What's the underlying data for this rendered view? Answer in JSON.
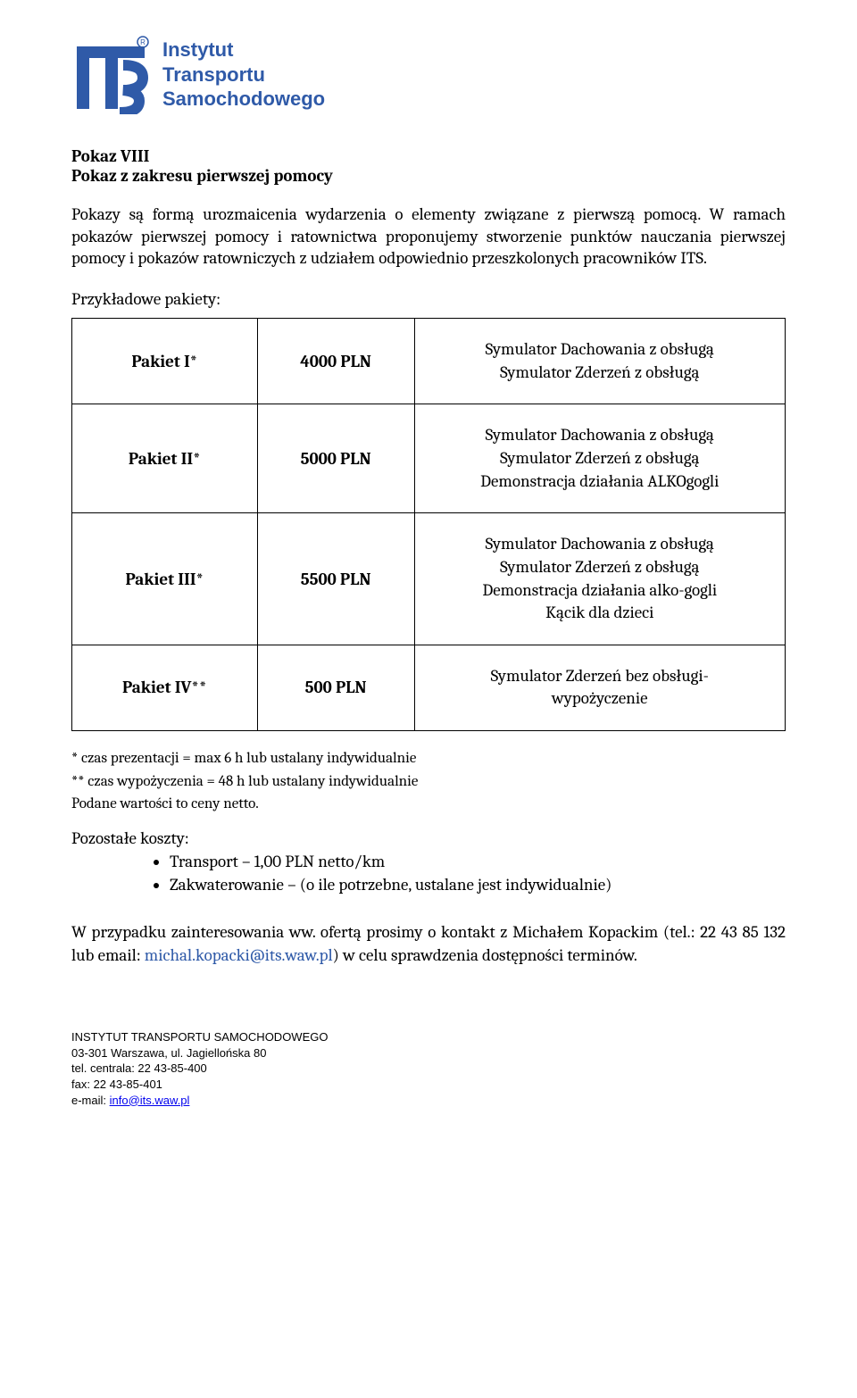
{
  "org": {
    "line1": "Instytut",
    "line2": "Transportu",
    "line3": "Samochodowego",
    "logo_colors": {
      "main": "#2f5aa8",
      "accent": "#2f5aa8"
    }
  },
  "heading": {
    "title": "Pokaz VIII",
    "subtitle": "Pokaz  z zakresu pierwszej pomocy"
  },
  "paragraph": "Pokazy są formą urozmaicenia wydarzenia o elementy związane z pierwszą pomocą. W ramach pokazów pierwszej pomocy i ratownictwa proponujemy stworzenie punktów nauczania pierwszej pomocy i pokazów ratowniczych z udziałem odpowiednio przeszkolonych pracowników ITS.",
  "packages_label": "Przykładowe pakiety:",
  "packages": [
    {
      "name": "Pakiet I*",
      "price": "4000 PLN",
      "desc": "Symulator Dachowania z obsługą\nSymulator Zderzeń z obsługą"
    },
    {
      "name": "Pakiet II*",
      "price": "5000 PLN",
      "desc": "Symulator Dachowania z obsługą\nSymulator Zderzeń z obsługą\nDemonstracja działania ALKOgogli"
    },
    {
      "name": "Pakiet III*",
      "price": "5500 PLN",
      "desc": "Symulator Dachowania z obsługą\nSymulator Zderzeń z obsługą\nDemonstracja działania alko-gogli\nKącik dla dzieci"
    },
    {
      "name": "Pakiet IV**",
      "price": "500 PLN",
      "desc": "Symulator Zderzeń bez obsługi-\nwypożyczenie"
    }
  ],
  "notes": {
    "n1": "* czas prezentacji = max 6 h lub ustalany indywidualnie",
    "n2": "** czas wypożyczenia = 48 h lub ustalany indywidualnie",
    "n3": "Podane wartości to ceny netto."
  },
  "other_costs": {
    "heading": "Pozostałe koszty:",
    "items": [
      "Transport – 1,00 PLN netto/km",
      "Zakwaterowanie – (o ile potrzebne, ustalane jest indywidualnie)"
    ]
  },
  "contact": {
    "pre": "W przypadku zainteresowania ww. ofertą prosimy o kontakt z Michałem Kopackim (tel.: 22 43 85 132 lub email: ",
    "email": "michal.kopacki@its.waw.pl",
    "post": ") w celu sprawdzenia dostępności terminów."
  },
  "footer": {
    "l1": "INSTYTUT TRANSPORTU SAMOCHODOWEGO",
    "l2": "03-301 Warszawa, ul. Jagiellońska 80",
    "l3": "tel. centrala: 22 43-85-400",
    "l4": "fax: 22 43-85-401",
    "l5_pre": "e-mail: ",
    "l5_link": "info@its.waw.pl"
  }
}
